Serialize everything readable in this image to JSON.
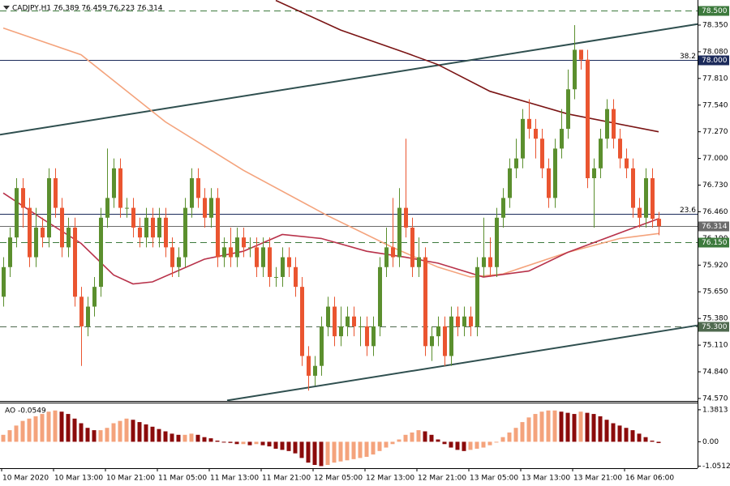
{
  "chart_data": {
    "type": "candlestick",
    "title": "CADJPY,H1  76.389 76.459 76.223 76.314",
    "xlim": [
      -0.5,
      107
    ],
    "ylim": [
      74.545,
      78.604
    ],
    "yticks": [
      {
        "value": 78.35,
        "label": "78.350"
      },
      {
        "value": 78.08,
        "label": "78.080"
      },
      {
        "value": 77.81,
        "label": "77.810"
      },
      {
        "value": 77.54,
        "label": "77.540"
      },
      {
        "value": 77.27,
        "label": "77.270"
      },
      {
        "value": 77.0,
        "label": "77.000"
      },
      {
        "value": 76.73,
        "label": "76.730"
      },
      {
        "value": 76.46,
        "label": "76.460"
      },
      {
        "value": 76.19,
        "label": "76.190"
      },
      {
        "value": 75.92,
        "label": "75.920"
      },
      {
        "value": 75.65,
        "label": "75.650"
      },
      {
        "value": 75.38,
        "label": "75.380"
      },
      {
        "value": 75.11,
        "label": "75.110"
      },
      {
        "value": 74.84,
        "label": "74.840"
      },
      {
        "value": 74.57,
        "label": "74.570"
      }
    ],
    "xticks": [
      {
        "value": 0,
        "label": "10 Mar 2020"
      },
      {
        "value": 8,
        "label": "10 Mar 13:00"
      },
      {
        "value": 16,
        "label": "10 Mar 21:00"
      },
      {
        "value": 24,
        "label": "11 Mar 05:00"
      },
      {
        "value": 32,
        "label": "11 Mar 13:00"
      },
      {
        "value": 40,
        "label": "11 Mar 21:00"
      },
      {
        "value": 48,
        "label": "12 Mar 05:00"
      },
      {
        "value": 56,
        "label": "12 Mar 13:00"
      },
      {
        "value": 64,
        "label": "12 Mar 21:00"
      },
      {
        "value": 72,
        "label": "13 Mar 05:00"
      },
      {
        "value": 80,
        "label": "13 Mar 13:00"
      },
      {
        "value": 88,
        "label": "13 Mar 21:00"
      },
      {
        "value": 96,
        "label": "16 Mar 06:00"
      }
    ],
    "up_color": "#5b8f2e",
    "down_color": "#ea5530",
    "open": [
      75.6,
      75.9,
      76.2,
      76.7,
      76.5,
      76.0,
      76.3,
      76.2,
      76.8,
      76.5,
      76.1,
      76.3,
      75.6,
      75.3,
      75.5,
      75.7,
      76.4,
      76.6,
      76.9,
      76.5,
      76.5,
      76.3,
      76.2,
      76.4,
      76.2,
      76.4,
      76.1,
      75.9,
      76.0,
      76.5,
      76.8,
      76.6,
      76.4,
      76.6,
      76.0,
      76.1,
      76.0,
      76.2,
      76.1,
      76.1,
      75.9,
      76.1,
      75.8,
      75.8,
      76.0,
      75.9,
      75.7,
      75.0,
      74.8,
      74.9,
      75.3,
      75.5,
      75.2,
      75.3,
      75.4,
      75.3,
      75.3,
      75.1,
      75.3,
      75.9,
      76.1,
      76.0,
      76.5,
      76.3,
      75.9,
      76.0,
      75.1,
      75.2,
      75.3,
      75.0,
      75.4,
      75.3,
      75.4,
      75.3,
      75.9,
      76.0,
      75.9,
      76.4,
      76.6,
      76.9,
      77.0,
      77.4,
      77.3,
      77.2,
      76.9,
      76.6,
      77.1,
      77.3,
      77.7,
      78.1,
      78.0,
      76.8,
      76.9,
      77.2,
      77.5,
      77.2,
      77.0,
      76.9,
      76.5,
      76.4,
      76.8,
      76.389
    ],
    "high": [
      76.0,
      76.3,
      76.8,
      76.8,
      76.6,
      76.5,
      76.4,
      76.9,
      76.9,
      76.6,
      76.4,
      76.4,
      75.7,
      75.6,
      75.8,
      76.5,
      77.1,
      77.0,
      77.0,
      76.6,
      76.6,
      76.4,
      76.5,
      76.5,
      76.5,
      76.5,
      76.2,
      76.1,
      76.6,
      76.9,
      76.9,
      76.7,
      76.7,
      76.7,
      76.2,
      76.3,
      76.3,
      76.3,
      76.2,
      76.2,
      76.2,
      76.2,
      75.9,
      76.1,
      76.1,
      76.0,
      75.8,
      75.1,
      75.0,
      75.4,
      75.6,
      75.6,
      75.5,
      75.5,
      75.5,
      75.4,
      75.4,
      75.4,
      76.0,
      76.3,
      76.6,
      76.7,
      77.2,
      76.4,
      76.2,
      76.1,
      75.3,
      75.4,
      75.4,
      75.5,
      75.5,
      75.5,
      75.5,
      76.0,
      76.4,
      76.2,
      76.5,
      76.7,
      77.0,
      77.2,
      77.5,
      77.6,
      77.4,
      77.3,
      77.0,
      77.2,
      77.5,
      77.9,
      78.35,
      78.1,
      78.1,
      77.0,
      77.3,
      77.6,
      77.6,
      77.3,
      77.1,
      77.0,
      76.6,
      76.9,
      76.9,
      76.459
    ],
    "low": [
      75.5,
      75.8,
      76.1,
      76.3,
      75.9,
      75.9,
      76.1,
      76.1,
      76.4,
      76.0,
      76.0,
      75.5,
      74.9,
      75.2,
      75.4,
      75.6,
      76.3,
      76.5,
      76.4,
      76.4,
      76.2,
      76.1,
      76.1,
      76.1,
      76.1,
      76.0,
      75.8,
      75.8,
      75.9,
      76.4,
      76.5,
      76.3,
      76.3,
      75.9,
      75.9,
      75.9,
      75.9,
      76.0,
      76.0,
      75.8,
      75.8,
      75.7,
      75.7,
      75.7,
      75.8,
      75.6,
      74.9,
      74.65,
      74.7,
      74.8,
      75.2,
      75.1,
      75.1,
      75.2,
      75.2,
      75.1,
      75.0,
      75.0,
      75.2,
      75.8,
      75.9,
      75.9,
      76.2,
      75.8,
      75.8,
      75.0,
      74.95,
      75.1,
      74.9,
      74.9,
      75.2,
      75.2,
      75.2,
      75.2,
      75.8,
      75.8,
      75.8,
      76.3,
      76.5,
      76.8,
      76.9,
      77.2,
      77.0,
      76.8,
      76.5,
      76.5,
      77.0,
      77.2,
      77.6,
      77.9,
      76.7,
      76.3,
      76.8,
      77.1,
      77.1,
      76.9,
      76.8,
      76.4,
      76.3,
      76.3,
      76.3,
      76.223
    ],
    "close": [
      75.9,
      76.2,
      76.7,
      76.5,
      76.0,
      76.3,
      76.2,
      76.8,
      76.5,
      76.1,
      76.3,
      75.6,
      75.3,
      75.5,
      75.7,
      76.4,
      76.6,
      76.9,
      76.5,
      76.5,
      76.3,
      76.2,
      76.4,
      76.2,
      76.4,
      76.1,
      75.9,
      76.0,
      76.5,
      76.8,
      76.6,
      76.4,
      76.6,
      76.0,
      76.1,
      76.0,
      76.2,
      76.1,
      76.1,
      75.9,
      76.1,
      75.8,
      75.8,
      76.0,
      75.9,
      75.7,
      75.0,
      74.8,
      74.9,
      75.3,
      75.5,
      75.2,
      75.3,
      75.4,
      75.3,
      75.3,
      75.1,
      75.3,
      75.9,
      76.1,
      76.0,
      76.5,
      76.3,
      75.9,
      76.0,
      75.1,
      75.2,
      75.3,
      75.0,
      75.4,
      75.3,
      75.4,
      75.3,
      75.9,
      76.0,
      75.9,
      76.4,
      76.6,
      76.9,
      77.0,
      77.4,
      77.3,
      77.2,
      76.9,
      76.6,
      77.1,
      77.3,
      77.7,
      78.1,
      78.0,
      76.8,
      76.9,
      77.2,
      77.5,
      77.2,
      77.0,
      76.9,
      76.5,
      76.4,
      76.8,
      76.389,
      76.314
    ],
    "series": [
      {
        "color": "#7a1414",
        "x": [
          42,
          52,
          62,
          67,
          75,
          87,
          101
        ],
        "values": [
          78.6,
          78.3,
          78.07,
          77.95,
          77.68,
          77.45,
          77.27
        ]
      },
      {
        "color": "#f4a37c",
        "x": [
          0,
          12,
          25,
          37,
          50,
          60,
          67,
          72,
          77,
          87,
          95,
          101
        ],
        "values": [
          78.32,
          78.05,
          77.37,
          76.88,
          76.42,
          76.1,
          75.9,
          75.8,
          75.83,
          76.05,
          76.19,
          76.24
        ]
      },
      {
        "color": "#b8324a",
        "x": [
          0,
          6,
          12,
          17,
          20,
          23,
          31,
          37,
          43,
          49,
          56,
          62,
          67,
          74,
          81,
          87,
          96,
          101
        ],
        "values": [
          76.65,
          76.39,
          76.14,
          75.82,
          75.73,
          75.75,
          75.98,
          76.06,
          76.23,
          76.19,
          76.06,
          76.0,
          75.94,
          75.8,
          75.86,
          76.05,
          76.27,
          76.39
        ]
      }
    ],
    "trendlines": [
      {
        "color": "#2f4f4f",
        "x": [
          -0.5,
          107
        ],
        "values": [
          77.24,
          78.36
        ]
      },
      {
        "color": "#2f4f4f",
        "x": [
          34.5,
          107
        ],
        "values": [
          74.55,
          75.31
        ]
      }
    ],
    "levels": [
      {
        "value": 78.5,
        "label": "78.500",
        "style": "dashed",
        "color": "#3d7a3d"
      },
      {
        "value": 78.0,
        "label": "78.000",
        "style": "solid",
        "color": "#1b2a5a",
        "fib": "38.2"
      },
      {
        "value": 76.44,
        "style": "solid",
        "color": "#1b2a5a",
        "fib": "23.6"
      },
      {
        "value": 76.314,
        "label": "76.314",
        "style": "price",
        "color": "#6b6b6b"
      },
      {
        "value": 76.15,
        "label": "76.150",
        "style": "dashed",
        "color": "#3d7a3d"
      },
      {
        "value": 75.3,
        "label": "75.300",
        "style": "dashed",
        "color": "#4f6a4f"
      }
    ],
    "indicator": {
      "label": "AO -0.0549",
      "y2lim": [
        -1.14,
        1.657
      ],
      "y2ticks": [
        1.3813,
        {
          "value": 0,
          "label": "0.00"
        },
        -1.0512
      ],
      "rise_color": "#f4a37c",
      "fall_color": "#8b0b0b",
      "values": [
        0.3,
        0.5,
        0.7,
        0.9,
        1.0,
        1.1,
        1.2,
        1.3,
        1.35,
        1.3,
        1.2,
        1.0,
        0.8,
        0.6,
        0.5,
        0.5,
        0.6,
        0.8,
        0.9,
        1.0,
        0.95,
        0.85,
        0.75,
        0.65,
        0.55,
        0.45,
        0.35,
        0.3,
        0.3,
        0.35,
        0.3,
        0.2,
        0.15,
        0.05,
        0.0,
        -0.05,
        -0.1,
        -0.1,
        -0.15,
        -0.1,
        -0.15,
        -0.2,
        -0.3,
        -0.35,
        -0.4,
        -0.5,
        -0.7,
        -0.9,
        -1.0,
        -1.05,
        -1.0,
        -0.9,
        -0.85,
        -0.8,
        -0.75,
        -0.7,
        -0.65,
        -0.55,
        -0.4,
        -0.25,
        -0.1,
        0.1,
        0.3,
        0.4,
        0.5,
        0.45,
        0.3,
        0.1,
        -0.1,
        -0.25,
        -0.35,
        -0.4,
        -0.35,
        -0.3,
        -0.25,
        -0.15,
        0.0,
        0.2,
        0.4,
        0.6,
        0.85,
        1.05,
        1.2,
        1.3,
        1.35,
        1.35,
        1.3,
        1.25,
        1.2,
        1.3,
        1.25,
        1.2,
        1.1,
        0.95,
        0.8,
        0.7,
        0.6,
        0.5,
        0.35,
        0.2,
        0.05,
        -0.0549
      ]
    }
  }
}
